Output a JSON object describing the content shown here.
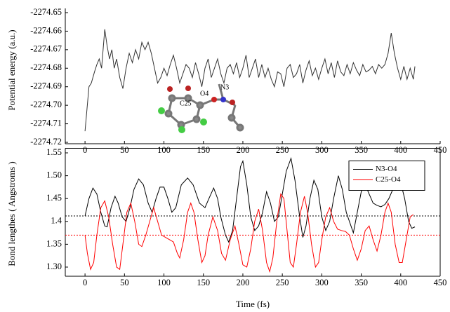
{
  "chart_data": [
    {
      "type": "line",
      "ylabel": "Potential energy (a.u.)",
      "annotations": [
        "O4",
        "N3",
        "C25"
      ],
      "xlim": [
        -25,
        450
      ],
      "xticks": [
        0,
        50,
        100,
        150,
        200,
        250,
        300,
        350,
        400,
        450
      ],
      "ylim": [
        -2274.72,
        -2274.65
      ],
      "yticks": [
        -2274.65,
        -2274.66,
        -2274.67,
        -2274.68,
        -2274.69,
        {
          "value": -2274.7,
          "label": "-2274.70"
        },
        -2274.71,
        -2274.72
      ],
      "series": [
        {
          "color": "#333333",
          "x": [
            0,
            5,
            8,
            12,
            15,
            18,
            21,
            25,
            28,
            31,
            34,
            37,
            40,
            44,
            48,
            52,
            56,
            60,
            64,
            68,
            72,
            76,
            80,
            84,
            88,
            92,
            96,
            100,
            104,
            108,
            112,
            116,
            120,
            124,
            128,
            132,
            136,
            140,
            144,
            148,
            152,
            156,
            160,
            164,
            168,
            172,
            176,
            180,
            184,
            188,
            192,
            196,
            200,
            204,
            208,
            212,
            216,
            220,
            224,
            228,
            232,
            236,
            240,
            244,
            248,
            252,
            256,
            260,
            264,
            268,
            272,
            276,
            280,
            284,
            288,
            292,
            296,
            300,
            304,
            308,
            312,
            316,
            320,
            324,
            328,
            332,
            336,
            340,
            344,
            348,
            352,
            356,
            360,
            364,
            368,
            372,
            376,
            380,
            384,
            388,
            392,
            396,
            400,
            404,
            408,
            412,
            416,
            418
          ],
          "values": [
            -2274.714,
            -2274.69,
            -2274.688,
            -2274.682,
            -2274.678,
            -2274.675,
            -2274.68,
            -2274.659,
            -2274.668,
            -2274.675,
            -2274.67,
            -2274.68,
            -2274.675,
            -2274.685,
            -2274.691,
            -2274.68,
            -2274.672,
            -2274.677,
            -2274.67,
            -2274.675,
            -2274.666,
            -2274.67,
            -2274.666,
            -2274.672,
            -2274.68,
            -2274.688,
            -2274.685,
            -2274.68,
            -2274.684,
            -2274.678,
            -2274.673,
            -2274.68,
            -2274.688,
            -2274.683,
            -2274.678,
            -2274.68,
            -2274.685,
            -2274.677,
            -2274.683,
            -2274.69,
            -2274.68,
            -2274.675,
            -2274.685,
            -2274.68,
            -2274.675,
            -2274.683,
            -2274.688,
            -2274.68,
            -2274.678,
            -2274.683,
            -2274.677,
            -2274.685,
            -2274.68,
            -2274.673,
            -2274.685,
            -2274.68,
            -2274.675,
            -2274.685,
            -2274.678,
            -2274.685,
            -2274.68,
            -2274.686,
            -2274.69,
            -2274.682,
            -2274.683,
            -2274.69,
            -2274.68,
            -2274.678,
            -2274.685,
            -2274.683,
            -2274.678,
            -2274.688,
            -2274.681,
            -2274.676,
            -2274.684,
            -2274.68,
            -2274.686,
            -2274.68,
            -2274.675,
            -2274.683,
            -2274.677,
            -2274.685,
            -2274.676,
            -2274.682,
            -2274.684,
            -2274.678,
            -2274.683,
            -2274.677,
            -2274.681,
            -2274.684,
            -2274.678,
            -2274.682,
            -2274.681,
            -2274.679,
            -2274.683,
            -2274.678,
            -2274.68,
            -2274.678,
            -2274.672,
            -2274.661,
            -2274.672,
            -2274.68,
            -2274.686,
            -2274.679,
            -2274.686,
            -2274.68,
            -2274.686,
            -2274.679
          ]
        }
      ]
    },
    {
      "type": "line",
      "xlabel": "Time (fs)",
      "ylabel": "Bond lengthes ( Angstroms )",
      "xlim": [
        -25,
        450
      ],
      "xticks": [
        0,
        50,
        100,
        150,
        200,
        250,
        300,
        350,
        400,
        450
      ],
      "ylim": [
        1.28,
        1.56
      ],
      "yticks": [
        {
          "value": 1.3,
          "label": "1.30"
        },
        1.35,
        1.4,
        1.45,
        {
          "value": 1.5,
          "label": "1.50"
        },
        1.55
      ],
      "yticks_labels_note": null,
      "legend": "upper right",
      "hlines": [
        {
          "value": 1.412,
          "color": "#000000"
        },
        {
          "value": 1.37,
          "color": "#ff0000"
        }
      ],
      "series": [
        {
          "name": "N3-O4",
          "color": "#000000",
          "x": [
            0,
            5,
            10,
            15,
            20,
            25,
            28,
            33,
            38,
            42,
            47,
            52,
            57,
            62,
            68,
            74,
            80,
            85,
            90,
            95,
            100,
            105,
            110,
            115,
            122,
            130,
            137,
            145,
            152,
            157,
            163,
            168,
            172,
            178,
            182,
            187,
            192,
            197,
            200,
            205,
            210,
            215,
            220,
            225,
            230,
            235,
            240,
            245,
            250,
            255,
            261,
            266,
            272,
            276,
            280,
            285,
            290,
            295,
            300,
            305,
            310,
            315,
            321,
            326,
            331,
            336,
            340,
            345,
            350,
            355,
            360,
            365,
            370,
            375,
            380,
            385,
            390,
            395,
            400,
            405,
            410,
            414,
            418
          ],
          "values": [
            1.412,
            1.45,
            1.473,
            1.46,
            1.42,
            1.39,
            1.388,
            1.43,
            1.455,
            1.44,
            1.41,
            1.4,
            1.43,
            1.47,
            1.493,
            1.48,
            1.44,
            1.42,
            1.45,
            1.475,
            1.475,
            1.45,
            1.42,
            1.43,
            1.48,
            1.495,
            1.48,
            1.44,
            1.43,
            1.45,
            1.473,
            1.45,
            1.41,
            1.37,
            1.355,
            1.38,
            1.45,
            1.52,
            1.532,
            1.48,
            1.41,
            1.38,
            1.39,
            1.42,
            1.465,
            1.44,
            1.4,
            1.41,
            1.46,
            1.51,
            1.538,
            1.49,
            1.41,
            1.365,
            1.39,
            1.45,
            1.49,
            1.47,
            1.41,
            1.38,
            1.4,
            1.45,
            1.5,
            1.47,
            1.42,
            1.395,
            1.375,
            1.42,
            1.465,
            1.48,
            1.46,
            1.44,
            1.435,
            1.432,
            1.437,
            1.45,
            1.47,
            1.483,
            1.485,
            1.45,
            1.4,
            1.385,
            1.388
          ]
        },
        {
          "name": "C25-O4",
          "color": "#ff0000",
          "x": [
            0,
            3,
            7,
            11,
            15,
            20,
            25,
            30,
            35,
            40,
            44,
            48,
            53,
            58,
            63,
            68,
            72,
            77,
            82,
            87,
            92,
            97,
            102,
            107,
            112,
            117,
            120,
            125,
            130,
            134,
            138,
            143,
            148,
            152,
            156,
            162,
            168,
            173,
            178,
            184,
            190,
            195,
            200,
            205,
            210,
            215,
            220,
            225,
            230,
            234,
            238,
            243,
            248,
            252,
            256,
            260,
            264,
            268,
            273,
            278,
            282,
            287,
            292,
            296,
            300,
            305,
            310,
            315,
            320,
            325,
            330,
            335,
            340,
            345,
            350,
            355,
            360,
            365,
            370,
            375,
            380,
            384,
            388,
            393,
            398,
            402,
            407,
            412,
            416
          ],
          "values": [
            1.37,
            1.33,
            1.295,
            1.31,
            1.37,
            1.43,
            1.445,
            1.41,
            1.35,
            1.3,
            1.295,
            1.35,
            1.42,
            1.44,
            1.4,
            1.35,
            1.345,
            1.37,
            1.4,
            1.43,
            1.4,
            1.37,
            1.365,
            1.36,
            1.355,
            1.33,
            1.32,
            1.36,
            1.42,
            1.44,
            1.42,
            1.36,
            1.31,
            1.325,
            1.37,
            1.41,
            1.38,
            1.33,
            1.315,
            1.36,
            1.39,
            1.35,
            1.305,
            1.3,
            1.34,
            1.4,
            1.427,
            1.38,
            1.31,
            1.29,
            1.32,
            1.4,
            1.46,
            1.45,
            1.38,
            1.31,
            1.3,
            1.35,
            1.42,
            1.455,
            1.42,
            1.35,
            1.3,
            1.31,
            1.36,
            1.41,
            1.43,
            1.4,
            1.383,
            1.38,
            1.378,
            1.37,
            1.34,
            1.315,
            1.34,
            1.38,
            1.39,
            1.36,
            1.335,
            1.37,
            1.42,
            1.44,
            1.42,
            1.35,
            1.31,
            1.31,
            1.36,
            1.41,
            1.415
          ]
        }
      ]
    }
  ]
}
